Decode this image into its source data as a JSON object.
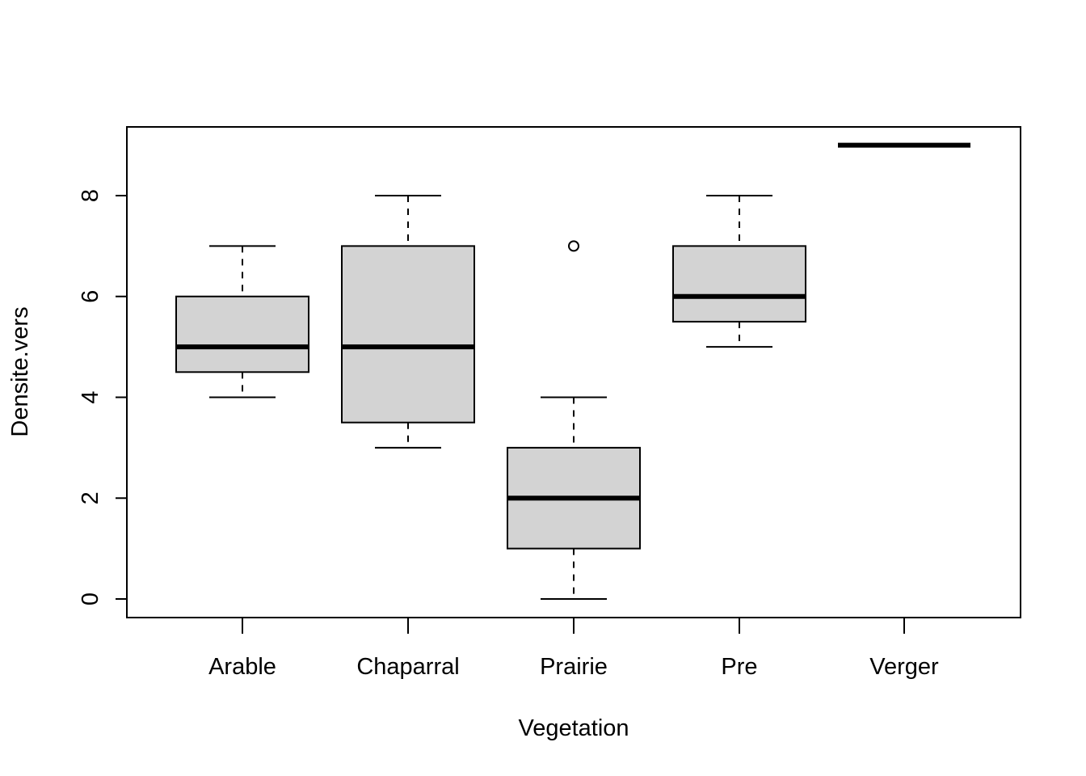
{
  "chart_data": {
    "type": "boxplot",
    "title": "",
    "xlabel": "Vegetation",
    "ylabel": "Densite.vers",
    "ylim": [
      -0.36,
      9.36
    ],
    "yticks": [
      0,
      2,
      4,
      6,
      8
    ],
    "grid": false,
    "legend": "none",
    "box_fill": "#d3d3d3",
    "categories": [
      "Arable",
      "Chaparral",
      "Prairie",
      "Pre",
      "Verger"
    ],
    "boxes": [
      {
        "category": "Arable",
        "whisker_low": 4,
        "q1": 4.5,
        "median": 5,
        "q3": 6,
        "whisker_high": 7,
        "outliers": []
      },
      {
        "category": "Chaparral",
        "whisker_low": 3,
        "q1": 3.5,
        "median": 5,
        "q3": 7,
        "whisker_high": 8,
        "outliers": []
      },
      {
        "category": "Prairie",
        "whisker_low": 0,
        "q1": 1,
        "median": 2,
        "q3": 3,
        "whisker_high": 4,
        "outliers": [
          7
        ]
      },
      {
        "category": "Pre",
        "whisker_low": 5,
        "q1": 5.5,
        "median": 6,
        "q3": 7,
        "whisker_high": 8,
        "outliers": []
      },
      {
        "category": "Verger",
        "whisker_low": 9,
        "q1": 9,
        "median": 9,
        "q3": 9,
        "whisker_high": 9,
        "outliers": []
      }
    ]
  }
}
